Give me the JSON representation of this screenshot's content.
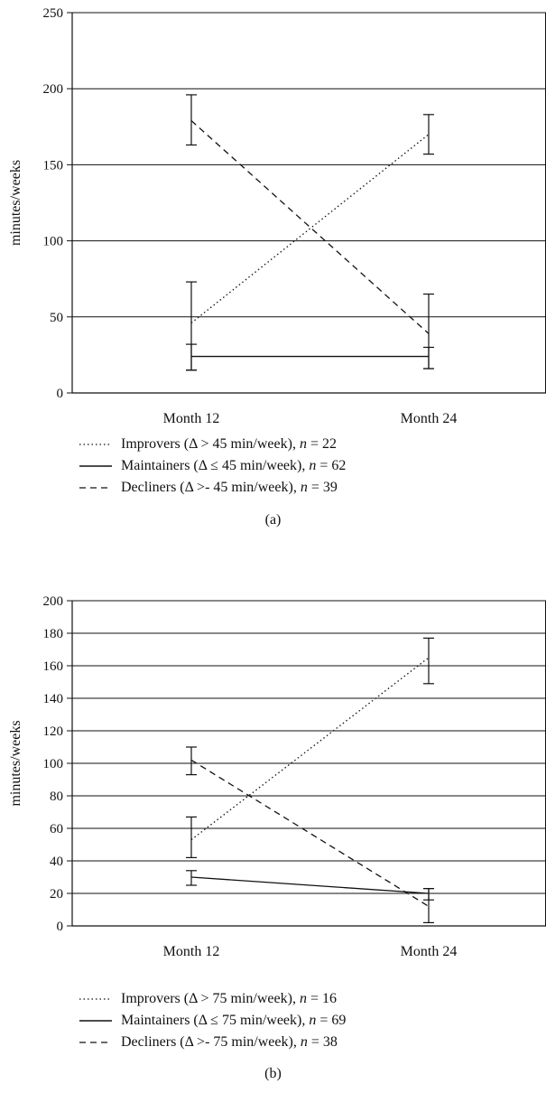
{
  "chart_data": [
    {
      "type": "line",
      "panel": "a",
      "caption": "(a)",
      "ylabel": "minutes/weeks",
      "xlabel": "",
      "ylim": [
        0,
        250
      ],
      "yticks": [
        0,
        50,
        100,
        150,
        200,
        250
      ],
      "grid": true,
      "categories": [
        "Month 12",
        "Month 24"
      ],
      "legend_position": "bottom",
      "series": [
        {
          "name": "Improvers (Δ > 45 min/week), n = 22",
          "style": "dotted",
          "values": [
            46,
            170
          ],
          "err_low": [
            15,
            157
          ],
          "err_high": [
            73,
            183
          ]
        },
        {
          "name": "Maintainers (Δ ≤ 45 min/week), n = 62",
          "style": "solid",
          "values": [
            24,
            24
          ],
          "err_low": [
            15,
            16
          ],
          "err_high": [
            32,
            30
          ]
        },
        {
          "name": "Decliners (Δ >- 45 min/week), n = 39",
          "style": "dashed",
          "values": [
            179,
            39
          ],
          "err_low": [
            163,
            16
          ],
          "err_high": [
            196,
            65
          ]
        }
      ]
    },
    {
      "type": "line",
      "panel": "b",
      "caption": "(b)",
      "ylabel": "minutes/weeks",
      "xlabel": "",
      "ylim": [
        0,
        200
      ],
      "yticks": [
        0,
        20,
        40,
        60,
        80,
        100,
        120,
        140,
        160,
        180,
        200
      ],
      "grid": true,
      "categories": [
        "Month 12",
        "Month 24"
      ],
      "legend_position": "bottom",
      "series": [
        {
          "name": "Improvers (Δ > 75 min/week), n = 16",
          "style": "dotted",
          "values": [
            53,
            165
          ],
          "err_low": [
            42,
            149
          ],
          "err_high": [
            67,
            177
          ]
        },
        {
          "name": "Maintainers (Δ ≤ 75 min/week), n = 69",
          "style": "solid",
          "values": [
            30,
            20
          ],
          "err_low": [
            25,
            16
          ],
          "err_high": [
            34,
            23
          ]
        },
        {
          "name": "Decliners (Δ >- 75 min/week), n = 38",
          "style": "dashed",
          "values": [
            102,
            12
          ],
          "err_low": [
            93,
            2
          ],
          "err_high": [
            110,
            23
          ]
        }
      ]
    }
  ]
}
